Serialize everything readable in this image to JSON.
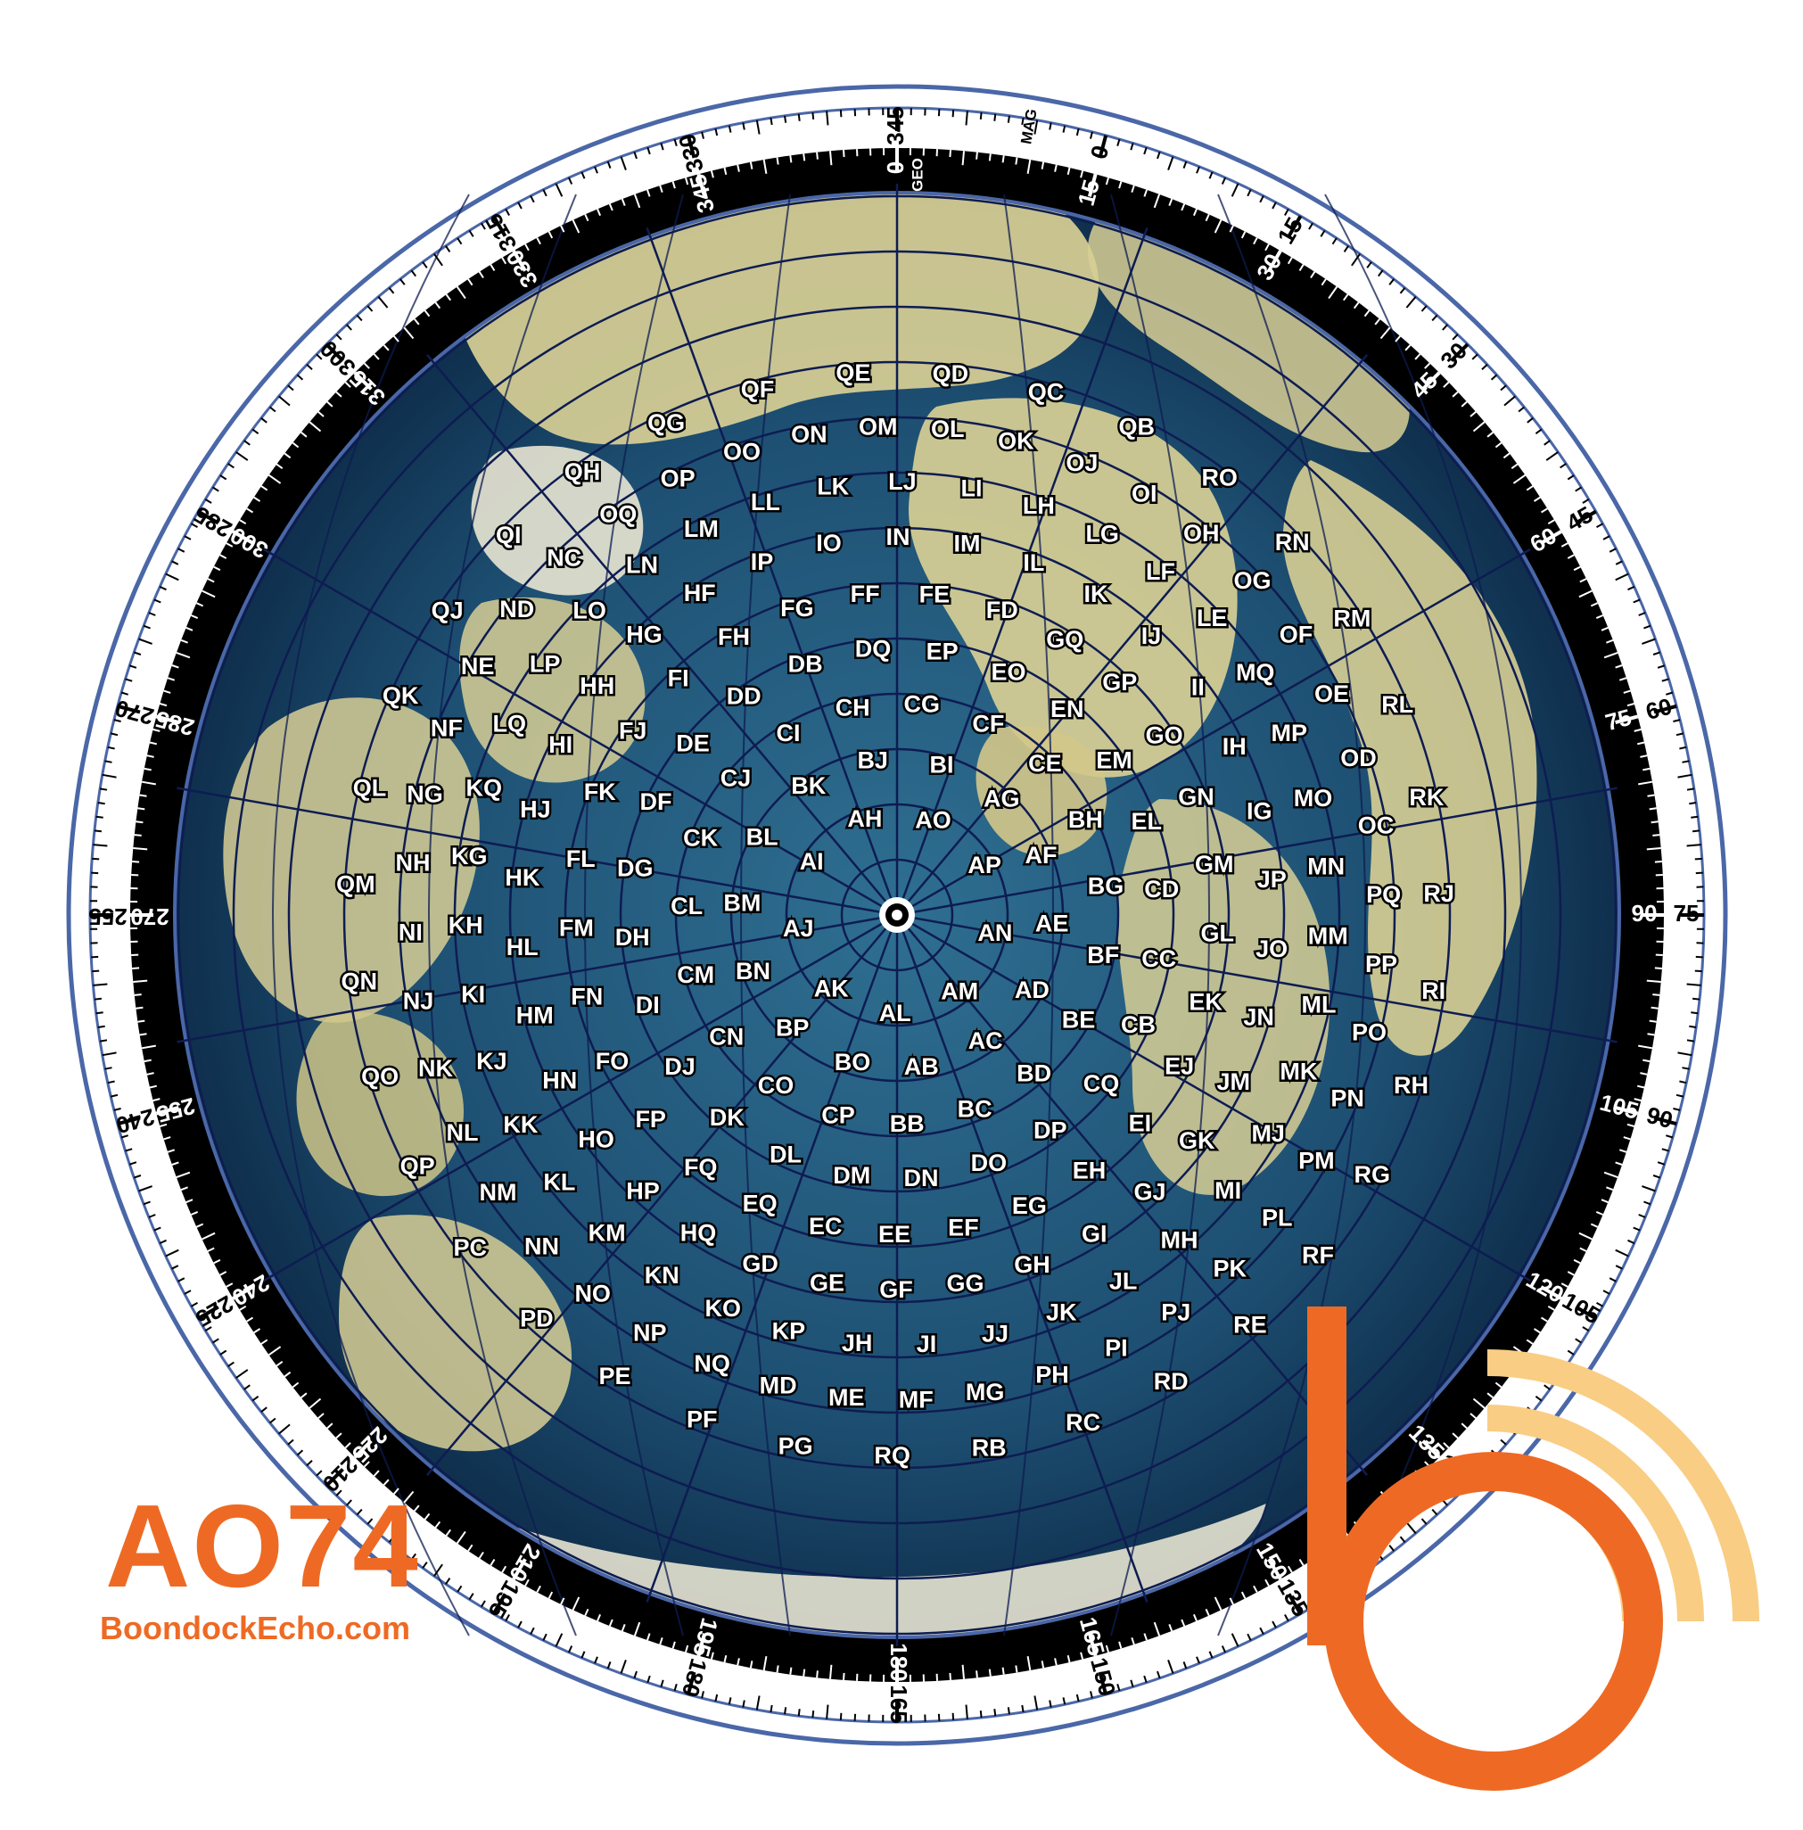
{
  "brand": {
    "code": "AO74",
    "url": "BoondockEcho.com",
    "accent": "#ee6a24",
    "accent_light": "#f9cd83"
  },
  "map": {
    "projection": "azimuthal-equidistant",
    "center_grid": "AO",
    "center_marker": "station-marker",
    "ocean_color": "#1d4f72",
    "land_color": "#d8cf95",
    "grid_line_color": "#0e1c52",
    "outer_ring_color": "#4a67a8"
  },
  "rings": {
    "geo_tag": "GEO",
    "mag_tag": "MAG",
    "magnetic_declination": 15
  },
  "grid_labels": [
    "AO",
    "AP",
    "AN",
    "AM",
    "AL",
    "AK",
    "AJ",
    "AI",
    "AH",
    "AG",
    "AF",
    "AE",
    "AD",
    "AC",
    "AB",
    "BO",
    "BP",
    "BN",
    "BM",
    "BL",
    "BK",
    "BJ",
    "BI",
    "BH",
    "BG",
    "BF",
    "BE",
    "BD",
    "BC",
    "BB",
    "CP",
    "CO",
    "CN",
    "CM",
    "CL",
    "CK",
    "CJ",
    "CI",
    "CH",
    "CG",
    "CF",
    "CE",
    "CD",
    "CC",
    "CB",
    "CQ",
    "DP",
    "DO",
    "DN",
    "DM",
    "DL",
    "DK",
    "DJ",
    "DI",
    "DH",
    "DG",
    "DF",
    "DE",
    "DD",
    "DB",
    "DQ",
    "EP",
    "EO",
    "EN",
    "EM",
    "EL",
    "EK",
    "EJ",
    "EI",
    "EH",
    "EG",
    "EF",
    "EE",
    "EC",
    "EQ",
    "FQ",
    "FP",
    "FO",
    "FN",
    "FM",
    "FL",
    "FK",
    "FJ",
    "FI",
    "FH",
    "FG",
    "FF",
    "FE",
    "FD",
    "GQ",
    "GP",
    "GO",
    "GN",
    "GM",
    "GL",
    "GK",
    "GJ",
    "GI",
    "GH",
    "GG",
    "GF",
    "GE",
    "GD",
    "HQ",
    "HP",
    "HO",
    "HN",
    "HM",
    "HL",
    "HK",
    "HJ",
    "HI",
    "HH",
    "HG",
    "HF",
    "IP",
    "IO",
    "IN",
    "IM",
    "IL",
    "IK",
    "IJ",
    "II",
    "IH",
    "IG",
    "JP",
    "JO",
    "JN",
    "JM",
    "JL",
    "JK",
    "JJ",
    "JI",
    "JH",
    "KP",
    "KO",
    "KN",
    "KM",
    "KL",
    "KK",
    "KJ",
    "KI",
    "KH",
    "KG",
    "KQ",
    "LQ",
    "LP",
    "LO",
    "LN",
    "LM",
    "LL",
    "LK",
    "LJ",
    "LI",
    "LH",
    "LG",
    "LF",
    "LE",
    "MQ",
    "MP",
    "MO",
    "MN",
    "MM",
    "ML",
    "MK",
    "MJ",
    "MI",
    "MH",
    "MG",
    "MF",
    "ME",
    "MD",
    "NQ",
    "NP",
    "NO",
    "NN",
    "NM",
    "NL",
    "NK",
    "NJ",
    "NI",
    "NH",
    "NG",
    "NF",
    "NE",
    "ND",
    "NC",
    "OQ",
    "OP",
    "OO",
    "ON",
    "OM",
    "OL",
    "OK",
    "OJ",
    "OI",
    "OH",
    "OG",
    "OF",
    "OE",
    "OD",
    "OC",
    "PQ",
    "PP",
    "PO",
    "PN",
    "PM",
    "PL",
    "PK",
    "PJ",
    "PI",
    "PH",
    "PG",
    "PF",
    "PE",
    "PD",
    "PC",
    "QP",
    "QO",
    "QN",
    "QM",
    "QL",
    "QK",
    "QJ",
    "QI",
    "QH",
    "QG",
    "QF",
    "QE",
    "QD",
    "QC",
    "QB",
    "RO",
    "RN",
    "RM",
    "RL",
    "RK",
    "RJ",
    "RI",
    "RH",
    "RG",
    "RF",
    "RE",
    "RD",
    "RC",
    "RB",
    "RQ"
  ],
  "scale_outer": [
    "0",
    "15",
    "30",
    "45",
    "60",
    "75",
    "90",
    "105",
    "120",
    "135",
    "150",
    "165",
    "180",
    "195",
    "210",
    "225",
    "240",
    "255",
    "270",
    "285",
    "300",
    "315",
    "330",
    "345"
  ],
  "scale_inner": [
    "0",
    "15",
    "30",
    "45",
    "60",
    "75",
    "90",
    "105",
    "120",
    "135",
    "150",
    "165",
    "180",
    "195",
    "210",
    "225",
    "240",
    "255",
    "270",
    "285",
    "300",
    "315",
    "330",
    "345"
  ]
}
